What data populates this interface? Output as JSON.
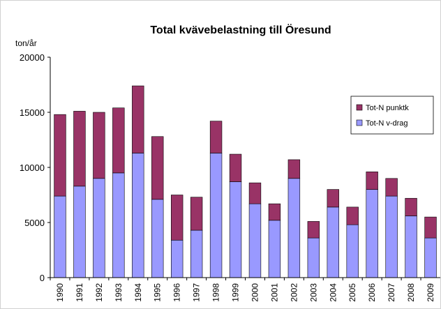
{
  "chart_data": {
    "type": "stacked_bar",
    "title": "Total kvävebelastning till Öresund",
    "y_label": "ton/år",
    "categories": [
      "1990",
      "1991",
      "1992",
      "1993",
      "1994",
      "1995",
      "1996",
      "1997",
      "1998",
      "1999",
      "2000",
      "2001",
      "2002",
      "2003",
      "2004",
      "2005",
      "2006",
      "2007",
      "2008",
      "2009"
    ],
    "series": [
      {
        "name": "Tot-N v-drag",
        "color": "#9999ff",
        "values": [
          7400,
          8300,
          9000,
          9500,
          11300,
          7100,
          3400,
          4300,
          11300,
          8700,
          6700,
          5200,
          9000,
          3600,
          6400,
          4800,
          8000,
          7400,
          5600,
          3600
        ]
      },
      {
        "name": "Tot-N punktk",
        "color": "#993366",
        "values": [
          7400,
          6800,
          6000,
          5900,
          6100,
          5700,
          4100,
          3000,
          2900,
          2500,
          1900,
          1500,
          1700,
          1500,
          1600,
          1600,
          1600,
          1600,
          1600,
          1900
        ]
      }
    ],
    "ylim": [
      0,
      20000
    ],
    "yticks": [
      0,
      5000,
      10000,
      15000,
      20000
    ],
    "legend": "right"
  }
}
